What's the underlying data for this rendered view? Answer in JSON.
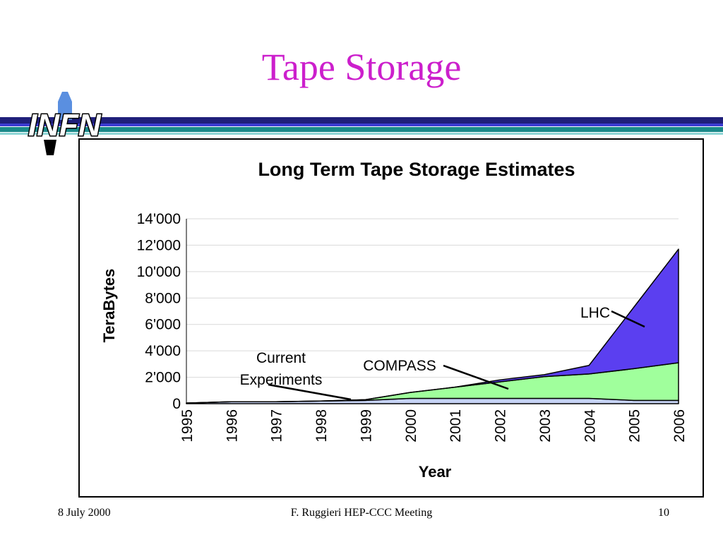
{
  "slide": {
    "title": "Tape Storage",
    "logo_text": "INFN",
    "footer_left": "8 July 2000",
    "footer_center": "F. Ruggieri HEP-CCC Meeting",
    "footer_right": "10"
  },
  "colors": {
    "title": "#cc1fcc",
    "stripe_dark": "#1f1f7a",
    "stripe_blue": "#3b3bd1",
    "stripe_teal": "#1a8a8a",
    "stripe_light": "#8fd6d6",
    "current": "#c6d3f5",
    "compass": "#a0ff9c",
    "lhc": "#5b3ff0",
    "grid": "#d9d9d9"
  },
  "chart_data": {
    "type": "area",
    "stacked": true,
    "title": "Long Term Tape Storage Estimates",
    "xlabel": "Year",
    "ylabel": "TeraBytes",
    "x": [
      "1995",
      "1996",
      "1997",
      "1998",
      "1999",
      "2000",
      "2001",
      "2002",
      "2003",
      "2004",
      "2005",
      "2006"
    ],
    "ylim": [
      0,
      14000
    ],
    "yticks": [
      0,
      2000,
      4000,
      6000,
      8000,
      10000,
      12000,
      14000
    ],
    "ytick_labels": [
      "0",
      "2'000",
      "4'000",
      "6'000",
      "8'000",
      "10'000",
      "12'000",
      "14'000"
    ],
    "grid": true,
    "series": [
      {
        "name": "Current Experiments",
        "color_key": "current",
        "values": [
          50,
          150,
          150,
          200,
          250,
          400,
          400,
          400,
          400,
          400,
          250,
          250
        ]
      },
      {
        "name": "COMPASS",
        "color_key": "compass",
        "values": [
          0,
          0,
          0,
          0,
          50,
          450,
          850,
          1250,
          1650,
          1850,
          2400,
          2850
        ]
      },
      {
        "name": "LHC",
        "color_key": "lhc",
        "values": [
          0,
          0,
          0,
          0,
          0,
          0,
          0,
          150,
          150,
          650,
          4650,
          8600
        ]
      }
    ]
  }
}
